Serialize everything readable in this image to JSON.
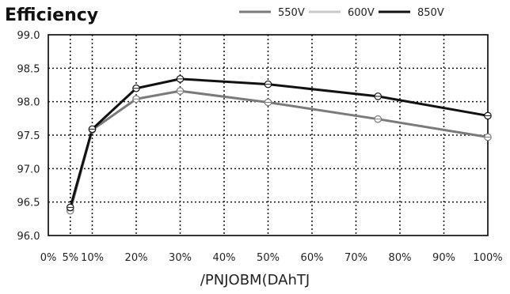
{
  "chart_data": {
    "type": "line",
    "title": "Efficiency",
    "xlabel": "/PNJOBM(DAhTJ",
    "ylabel": "",
    "xlim": [
      0,
      100
    ],
    "ylim": [
      96.0,
      99.0
    ],
    "x_tick_labels": [
      "0%",
      "5%",
      "10%",
      "20%",
      "30%",
      "40%",
      "50%",
      "60%",
      "70%",
      "80%",
      "90%",
      "100%"
    ],
    "y_tick_labels": [
      "99.0",
      "98.5",
      "98.0",
      "97.5",
      "97.0",
      "96.5",
      "96.0"
    ],
    "grid": true,
    "legend_position": "top-right",
    "series": [
      {
        "name": "550V",
        "color": "#7a7a7a",
        "points": [
          {
            "x": 5,
            "y": 96.37
          },
          {
            "x": 10,
            "y": 97.58
          },
          {
            "x": 20,
            "y": 98.04
          },
          {
            "x": 30,
            "y": 98.16
          },
          {
            "x": 50,
            "y": 97.99
          },
          {
            "x": 75,
            "y": 97.74
          },
          {
            "x": 100,
            "y": 97.47
          }
        ]
      },
      {
        "name": "600V",
        "color": "#c9c9c9",
        "points": []
      },
      {
        "name": "850V",
        "color": "#111111",
        "points": [
          {
            "x": 5,
            "y": 96.42
          },
          {
            "x": 10,
            "y": 97.59
          },
          {
            "x": 20,
            "y": 98.2
          },
          {
            "x": 30,
            "y": 98.34
          },
          {
            "x": 50,
            "y": 98.26
          },
          {
            "x": 75,
            "y": 98.08
          },
          {
            "x": 100,
            "y": 97.79
          }
        ]
      }
    ]
  }
}
